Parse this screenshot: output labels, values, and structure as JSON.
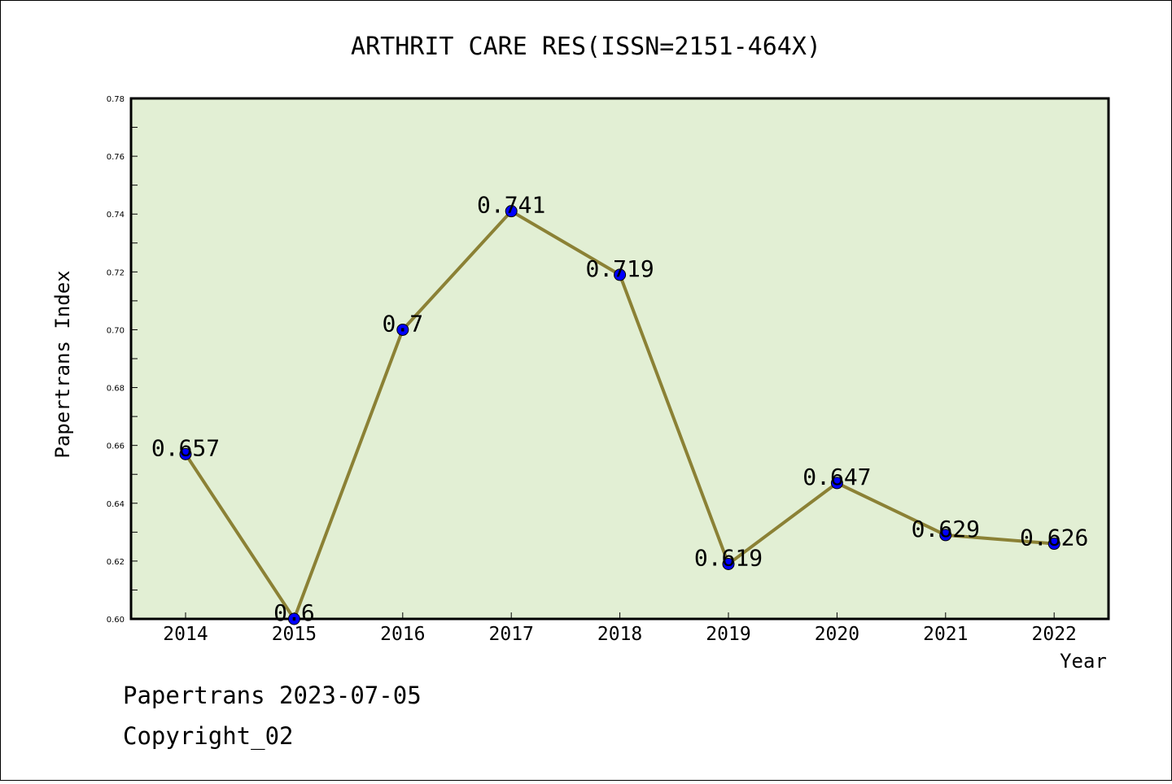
{
  "chart_data": {
    "type": "line",
    "title": "ARTHRIT CARE RES(ISSN=2151-464X)",
    "xlabel": "Year",
    "ylabel": "Papertrans Index",
    "categories": [
      "2014",
      "2015",
      "2016",
      "2017",
      "2018",
      "2019",
      "2020",
      "2021",
      "2022"
    ],
    "values": [
      0.657,
      0.6,
      0.7,
      0.741,
      0.719,
      0.619,
      0.647,
      0.629,
      0.626
    ],
    "data_labels": [
      "0.657",
      "0.6",
      "0.7",
      "0.741",
      "0.719",
      "0.619",
      "0.647",
      "0.629",
      "0.626"
    ],
    "ylim": [
      0.6,
      0.78
    ],
    "yticks": [
      "0.60",
      "0.62",
      "0.64",
      "0.66",
      "0.68",
      "0.70",
      "0.72",
      "0.74",
      "0.76",
      "0.78"
    ],
    "grid": false,
    "legend": "none"
  },
  "footer": {
    "line1": "Papertrans 2023-07-05",
    "line2": "Copyright_02"
  },
  "colors": {
    "plot_background": "#e2efd4",
    "line": "#8b8135",
    "marker": "#0000ff"
  }
}
